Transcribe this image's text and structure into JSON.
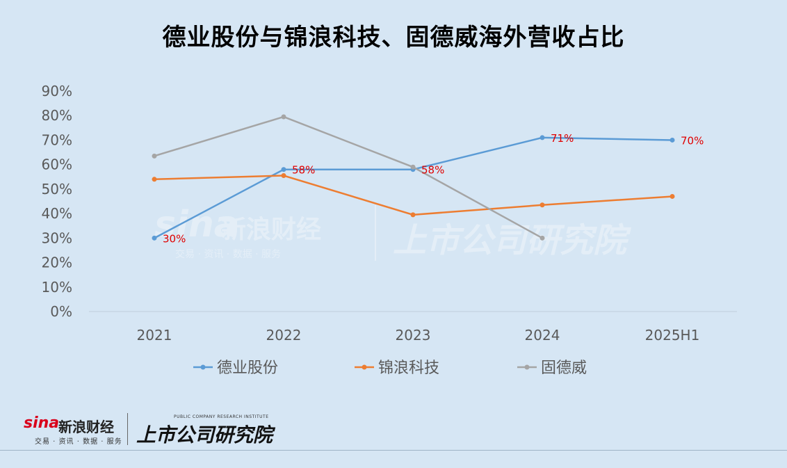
{
  "title": "德业股份与锦浪科技、固德威海外营收占比",
  "chart_data": {
    "type": "line",
    "categories": [
      "2021",
      "2022",
      "2023",
      "2024",
      "2025H1"
    ],
    "y_ticks": [
      "0%",
      "10%",
      "20%",
      "30%",
      "40%",
      "50%",
      "60%",
      "70%",
      "80%",
      "90%"
    ],
    "ylim": [
      0,
      90
    ],
    "grid": false,
    "legend_position": "bottom",
    "series": [
      {
        "name": "德业股份",
        "color": "#5b9bd5",
        "values": [
          30,
          58,
          58,
          71,
          70
        ],
        "labels": [
          "30%",
          "58%",
          "58%",
          "71%",
          "70%"
        ]
      },
      {
        "name": "锦浪科技",
        "color": "#ed7d31",
        "values": [
          54,
          55.5,
          39.5,
          43.5,
          47
        ],
        "labels": []
      },
      {
        "name": "固德威",
        "color": "#a5a5a5",
        "values": [
          63.5,
          79.5,
          59,
          30,
          null
        ],
        "labels": []
      }
    ],
    "data_label_color": "#e00000"
  },
  "watermark": {
    "sina_logo": "sina",
    "sina_name": "新浪财经",
    "sina_sub": "交易 · 资讯 · 数据 · 服务",
    "institute_cn": "上市公司研究院"
  },
  "footer": {
    "sina_logo": "sina",
    "sina_name": "新浪财经",
    "sina_sub": "交易 · 资讯 · 数据 · 服务",
    "institute_en": "PUBLIC COMPANY RESEARCH INSTITUTE",
    "institute_cn": "上市公司研究院"
  }
}
